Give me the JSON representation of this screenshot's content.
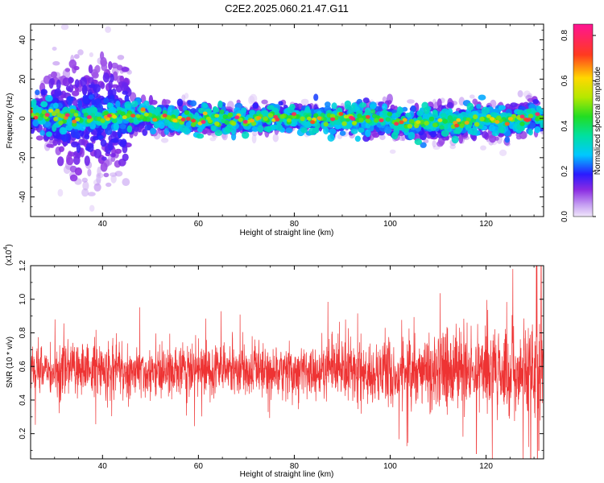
{
  "figure": {
    "title": "C2E2.2025.060.21.47.G11"
  },
  "chart_data": [
    {
      "type": "heatmap",
      "title": "C2E2.2025.060.21.47.G11",
      "xlabel": "Height of straight line (km)",
      "ylabel": "Frequency (Hz)",
      "xlim": [
        25,
        132
      ],
      "ylim": [
        -50,
        48
      ],
      "xticks": [
        40,
        60,
        80,
        100,
        120
      ],
      "yticks": [
        -40,
        -20,
        0,
        20,
        40
      ],
      "colorbar": {
        "label": "Normalized spectral amplitude",
        "range": [
          0.0,
          0.85
        ],
        "ticks": [
          0.0,
          0.2,
          0.4,
          0.6,
          0.8
        ]
      },
      "ridge": {
        "description": "Main spectral ridge centred near 0 Hz",
        "points": [
          [
            25,
            1
          ],
          [
            30,
            2
          ],
          [
            35,
            0
          ],
          [
            40,
            0
          ],
          [
            45,
            1
          ],
          [
            50,
            1
          ],
          [
            55,
            0
          ],
          [
            60,
            -1
          ],
          [
            65,
            0
          ],
          [
            70,
            -1
          ],
          [
            75,
            0
          ],
          [
            80,
            0
          ],
          [
            85,
            0
          ],
          [
            90,
            0
          ],
          [
            95,
            -1
          ],
          [
            100,
            0
          ],
          [
            105,
            -3
          ],
          [
            110,
            -2
          ],
          [
            115,
            -2
          ],
          [
            120,
            0
          ],
          [
            125,
            -2
          ],
          [
            130,
            1
          ],
          [
            132,
            1
          ]
        ],
        "halo_width_hz": [
          [
            25,
            6
          ],
          [
            32,
            28
          ],
          [
            45,
            28
          ],
          [
            46,
            8
          ],
          [
            90,
            6
          ],
          [
            105,
            10
          ],
          [
            132,
            9
          ]
        ],
        "peak_amplitude": 0.85
      }
    },
    {
      "type": "line",
      "xlabel": "Height of straight line (km)",
      "ylabel": "SNR (10 * v/v)",
      "ymultiplier_label": "(x10",
      "ymultiplier_exp": "4",
      "xlim": [
        25,
        132
      ],
      "ylim": [
        0.05,
        1.2
      ],
      "xticks": [
        40,
        60,
        80,
        100,
        120
      ],
      "yticks": [
        0.2,
        0.4,
        0.6,
        0.8,
        1.0,
        1.2
      ],
      "series": [
        {
          "color": "#ee3333",
          "mean_envelope": [
            [
              25,
              0.58
            ],
            [
              40,
              0.58
            ],
            [
              60,
              0.57
            ],
            [
              80,
              0.57
            ],
            [
              100,
              0.58
            ],
            [
              120,
              0.57
            ],
            [
              132,
              0.57
            ]
          ],
          "amplitude_envelope": [
            [
              25,
              0.13
            ],
            [
              40,
              0.16
            ],
            [
              60,
              0.14
            ],
            [
              80,
              0.14
            ],
            [
              95,
              0.18
            ],
            [
              110,
              0.22
            ],
            [
              125,
              0.26
            ],
            [
              132,
              0.3
            ]
          ],
          "spikes": [
            [
              118,
              0.08
            ],
            [
              130.5,
              1.22
            ],
            [
              131,
              0.1
            ],
            [
              131.5,
              1.2
            ]
          ]
        }
      ]
    }
  ]
}
